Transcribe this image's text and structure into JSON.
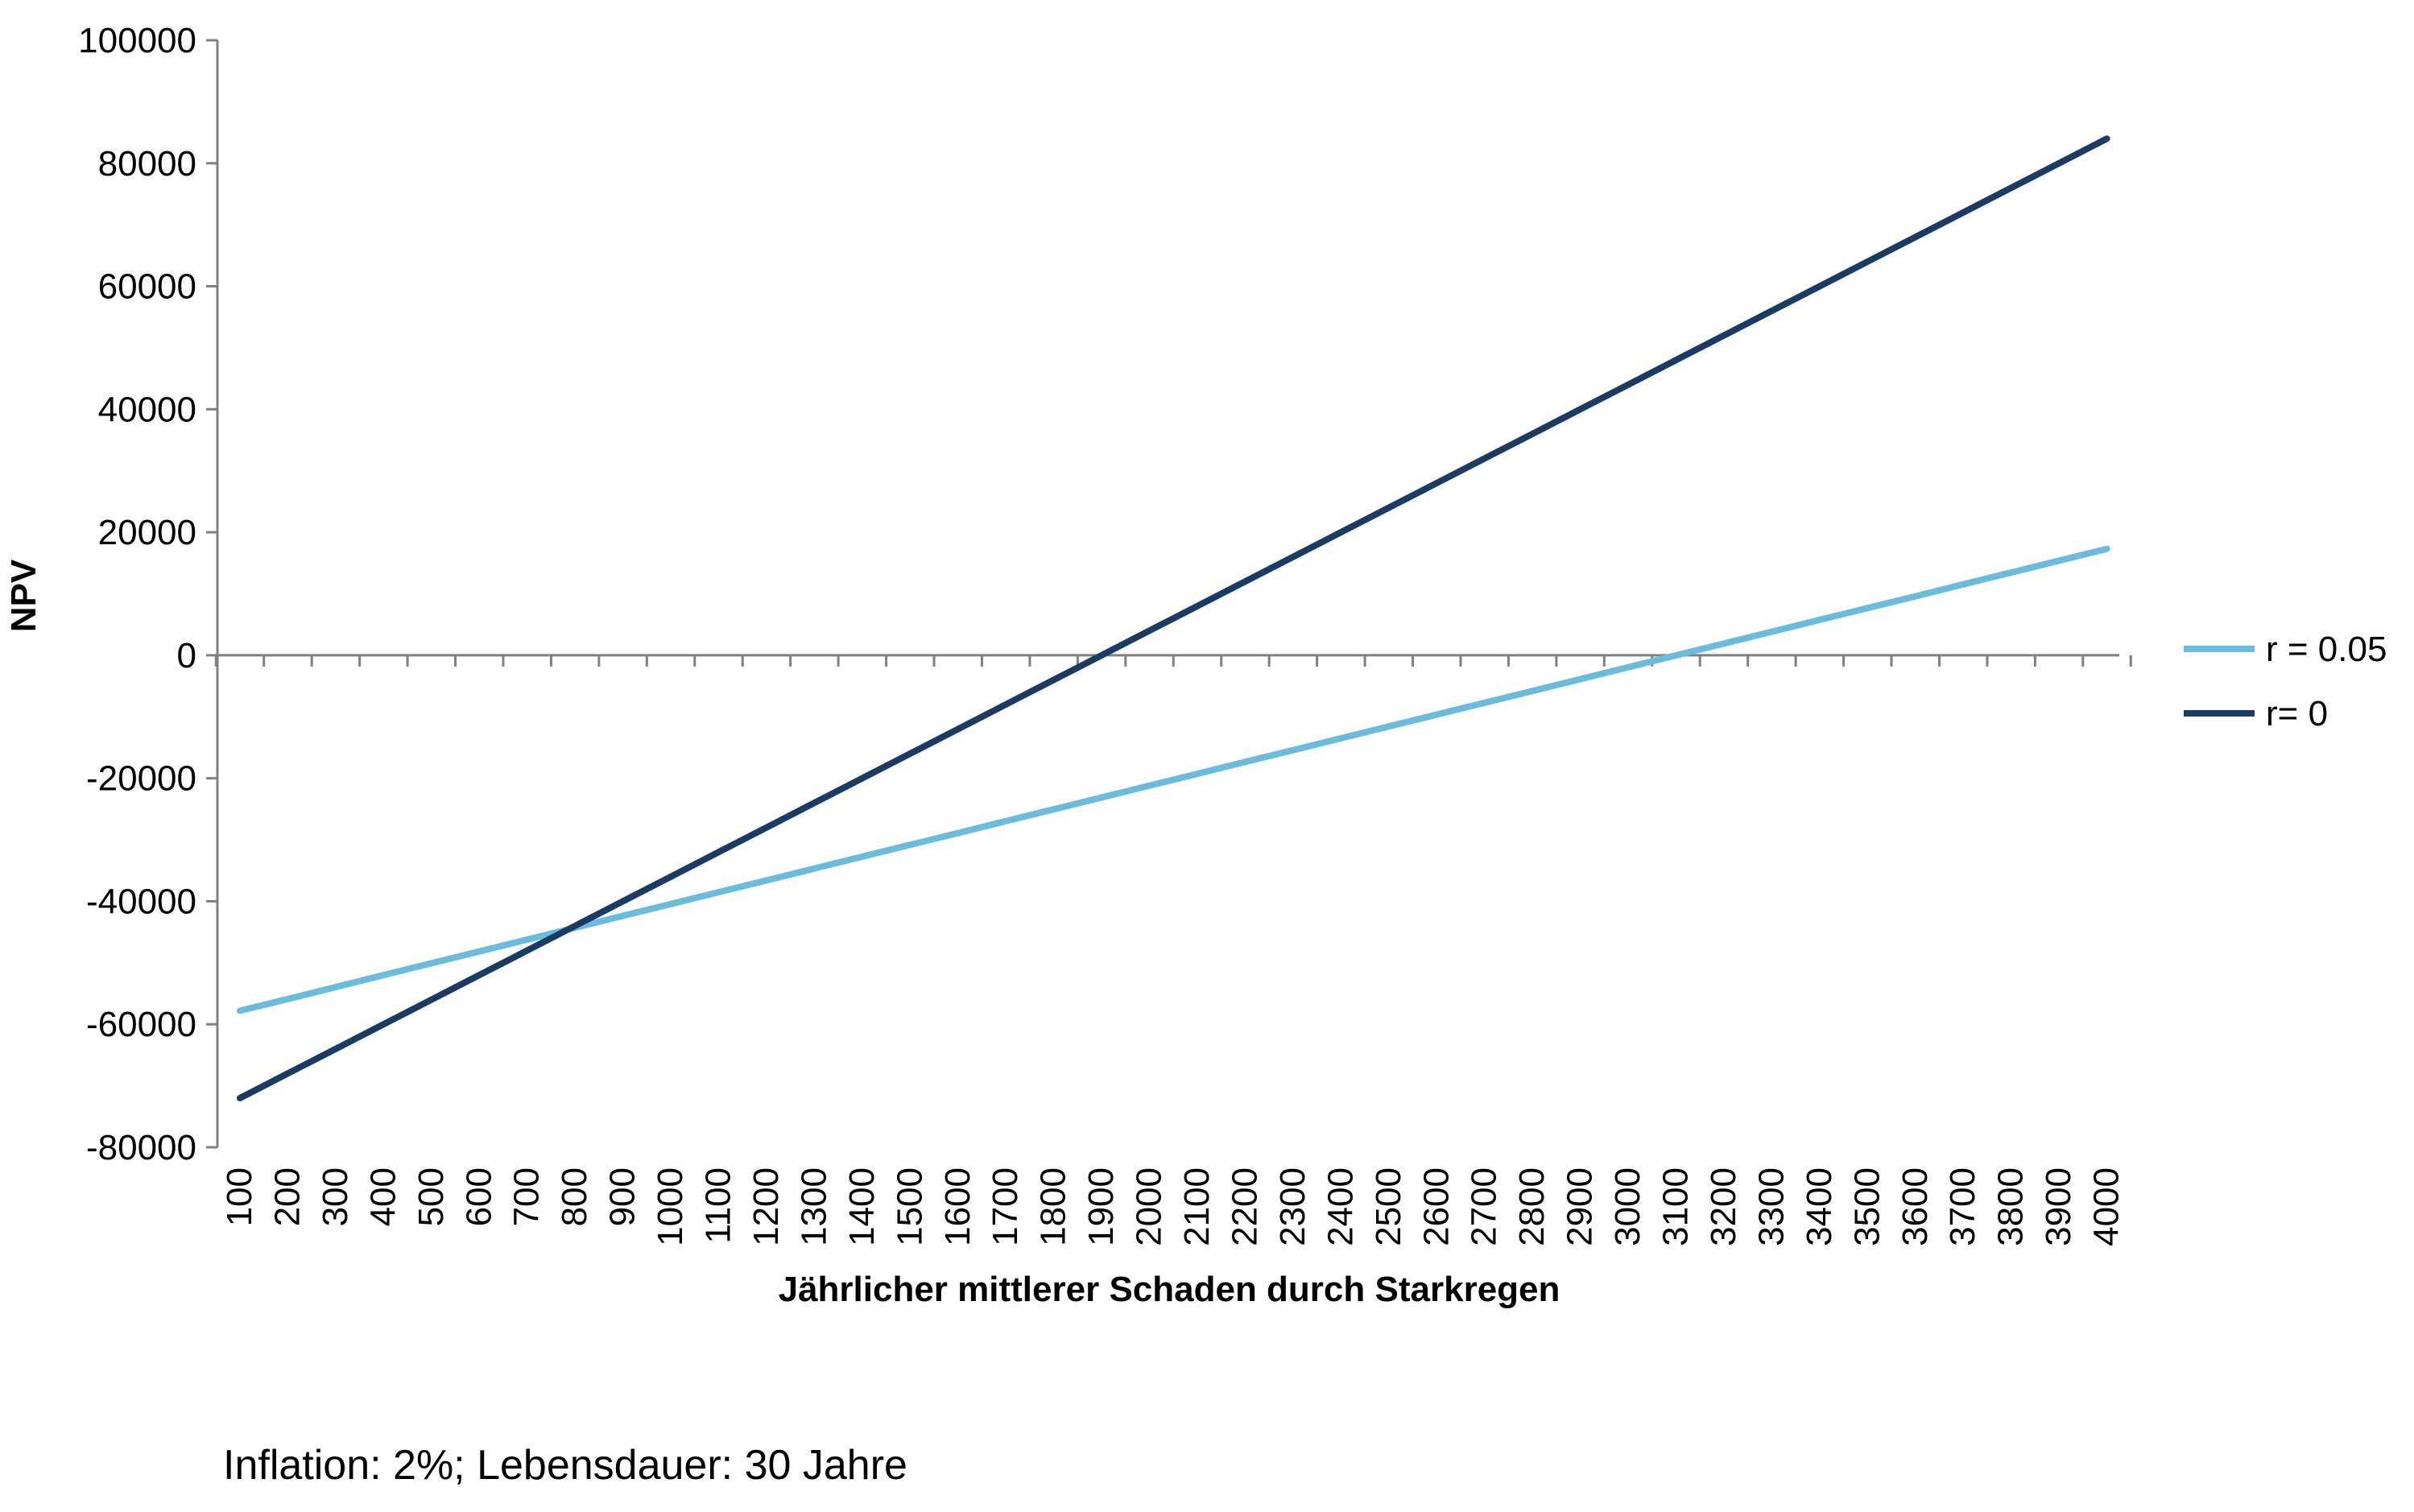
{
  "chart_data": {
    "type": "line",
    "title": "",
    "xlabel": "Jährlicher mittlerer Schaden durch Starkregen",
    "ylabel": "NPV",
    "x": [
      100,
      200,
      300,
      400,
      500,
      600,
      700,
      800,
      900,
      1000,
      1100,
      1200,
      1300,
      1400,
      1500,
      1600,
      1700,
      1800,
      1900,
      2000,
      2100,
      2200,
      2300,
      2400,
      2500,
      2600,
      2700,
      2800,
      2900,
      3000,
      3100,
      3200,
      3300,
      3400,
      3500,
      3600,
      3700,
      3800,
      3900,
      4000
    ],
    "x_tick_labels": [
      "100",
      "200",
      "300",
      "400",
      "500",
      "600",
      "700",
      "800",
      "900",
      "1000",
      "1100",
      "1200",
      "1300",
      "1400",
      "1500",
      "1600",
      "1700",
      "1800",
      "1900",
      "2000",
      "2100",
      "2200",
      "2300",
      "2400",
      "2500",
      "2600",
      "2700",
      "2800",
      "2900",
      "3000",
      "3100",
      "3200",
      "3300",
      "3400",
      "3500",
      "3600",
      "3700",
      "3800",
      "3900",
      "4000"
    ],
    "y_ticks": [
      100000,
      80000,
      60000,
      40000,
      20000,
      0,
      -20000,
      -40000,
      -60000,
      -80000
    ],
    "y_tick_labels": [
      "100000",
      "80000",
      "60000",
      "40000",
      "20000",
      "0",
      "-20000",
      "-40000",
      "-60000",
      "-80000"
    ],
    "ylim": [
      -80000,
      100000
    ],
    "grid": false,
    "legend_position": "right",
    "series": [
      {
        "name": "r = 0.05",
        "color": "#69bcdc",
        "values": [
          -57800,
          -55900,
          -53950,
          -52000,
          -50080,
          -48150,
          -46230,
          -44300,
          -42370,
          -40450,
          -38520,
          -36600,
          -34670,
          -32740,
          -30820,
          -28900,
          -26970,
          -25040,
          -23120,
          -21200,
          -19270,
          -17340,
          -15420,
          -13500,
          -11570,
          -9640,
          -7720,
          -5800,
          -3870,
          -1940,
          -20,
          1900,
          3830,
          5760,
          7680,
          9600,
          11530,
          13460,
          15380,
          17300
        ]
      },
      {
        "name": "r= 0",
        "color": "#1a3c64",
        "values": [
          -72000,
          -68000,
          -64000,
          -60000,
          -56000,
          -52000,
          -48000,
          -44000,
          -40000,
          -36000,
          -32000,
          -28000,
          -24000,
          -20000,
          -16000,
          -12000,
          -8000,
          -4000,
          0,
          4000,
          8000,
          12000,
          16000,
          20000,
          24000,
          28000,
          32000,
          36000,
          40000,
          44000,
          48000,
          52000,
          56000,
          60000,
          64000,
          68000,
          72000,
          76000,
          80000,
          84000
        ]
      }
    ]
  },
  "note": "Inflation: 2%; Lebensdauer: 30 Jahre"
}
